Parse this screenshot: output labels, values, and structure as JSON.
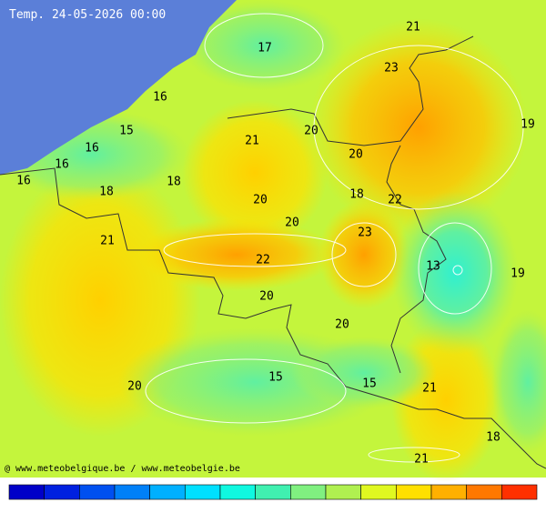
{
  "header": {
    "title": "Temp. 24-05-2026 00:00"
  },
  "footer": {
    "credit": "@ www.meteobelgique.be / www.meteobelgie.be"
  },
  "labels": [
    17,
    21,
    23,
    16,
    19,
    15,
    21,
    20,
    16,
    20,
    16,
    16,
    18,
    18,
    18,
    22,
    20,
    20,
    23,
    21,
    22,
    13,
    19,
    20,
    20,
    15,
    15,
    21,
    20,
    18,
    21
  ]
}
